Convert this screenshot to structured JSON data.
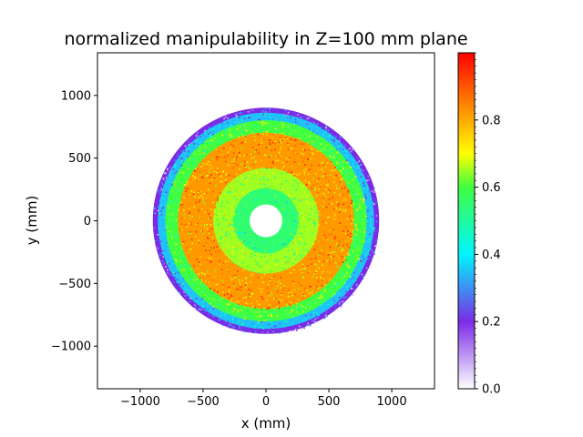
{
  "chart_data": {
    "type": "heatmap",
    "title": "normalized manipulability in Z=100 mm plane",
    "xlabel": "x (mm)",
    "ylabel": "y (mm)",
    "xlim": [
      -1340,
      1340
    ],
    "ylim": [
      -1340,
      1340
    ],
    "x_ticks": [
      -1000,
      -500,
      0,
      500,
      1000
    ],
    "y_ticks": [
      -1000,
      -500,
      0,
      500,
      1000
    ],
    "x_tick_labels": [
      "−1000",
      "−500",
      "0",
      "500",
      "1000"
    ],
    "y_tick_labels": [
      "−1000",
      "−500",
      "0",
      "500",
      "1000"
    ],
    "grid": false,
    "colorbar": {
      "range": [
        0.0,
        1.0
      ],
      "ticks": [
        0.0,
        0.2,
        0.4,
        0.6,
        0.8
      ],
      "tick_labels": [
        "0.0",
        "0.2",
        "0.4",
        "0.6",
        "0.8"
      ],
      "colormap": [
        "#ffffff",
        "#7b2be6",
        "#00f5ff",
        "#40ff40",
        "#ffff00",
        "#ff8000",
        "#ff0000"
      ]
    },
    "rings": [
      {
        "r_inner": 0,
        "r_outer": 130,
        "value": null
      },
      {
        "r_inner": 130,
        "r_outer": 260,
        "value": 0.55
      },
      {
        "r_inner": 260,
        "r_outer": 420,
        "value": 0.65
      },
      {
        "r_inner": 420,
        "r_outer": 700,
        "value": 0.82
      },
      {
        "r_inner": 700,
        "r_outer": 800,
        "value": 0.6
      },
      {
        "r_inner": 800,
        "r_outer": 860,
        "value": 0.35
      },
      {
        "r_inner": 860,
        "r_outer": 900,
        "value": 0.2
      }
    ]
  }
}
